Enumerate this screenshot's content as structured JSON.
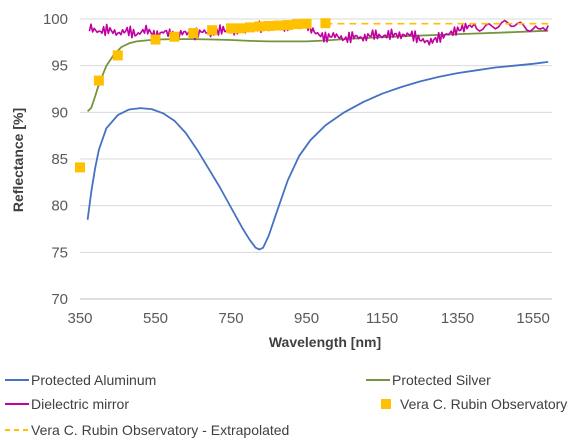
{
  "chart_data": {
    "type": "line",
    "title": "",
    "xlabel": "Wavelength [nm]",
    "ylabel": "Reflectance [%]",
    "xlim": [
      350,
      1600
    ],
    "ylim": [
      70,
      100
    ],
    "x_ticks": [
      350,
      550,
      750,
      950,
      1150,
      1350,
      1550
    ],
    "y_ticks": [
      70,
      75,
      80,
      85,
      90,
      95,
      100
    ],
    "grid": "horizontal",
    "legend_position": "bottom",
    "series": [
      {
        "name": "Protected Aluminum",
        "kind": "line",
        "color": "#4472C4",
        "points": [
          [
            370,
            78.5
          ],
          [
            380,
            81.5
          ],
          [
            390,
            84
          ],
          [
            400,
            86
          ],
          [
            420,
            88.3
          ],
          [
            450,
            89.7
          ],
          [
            480,
            90.3
          ],
          [
            510,
            90.45
          ],
          [
            540,
            90.35
          ],
          [
            570,
            89.9
          ],
          [
            600,
            89.1
          ],
          [
            630,
            87.8
          ],
          [
            660,
            86
          ],
          [
            690,
            84
          ],
          [
            720,
            82
          ],
          [
            750,
            79.8
          ],
          [
            780,
            77.6
          ],
          [
            800,
            76.3
          ],
          [
            815,
            75.5
          ],
          [
            825,
            75.3
          ],
          [
            835,
            75.5
          ],
          [
            850,
            76.8
          ],
          [
            870,
            79.2
          ],
          [
            900,
            82.7
          ],
          [
            930,
            85.3
          ],
          [
            960,
            87
          ],
          [
            1000,
            88.6
          ],
          [
            1050,
            90
          ],
          [
            1100,
            91.1
          ],
          [
            1150,
            92
          ],
          [
            1200,
            92.7
          ],
          [
            1250,
            93.3
          ],
          [
            1300,
            93.8
          ],
          [
            1350,
            94.2
          ],
          [
            1400,
            94.5
          ],
          [
            1450,
            94.8
          ],
          [
            1500,
            95
          ],
          [
            1550,
            95.2
          ],
          [
            1590,
            95.4
          ]
        ]
      },
      {
        "name": "Protected Silver",
        "kind": "line",
        "color": "#77933C",
        "points": [
          [
            370,
            90.1
          ],
          [
            380,
            90.5
          ],
          [
            390,
            91.7
          ],
          [
            400,
            93
          ],
          [
            420,
            95
          ],
          [
            440,
            96.2
          ],
          [
            460,
            97
          ],
          [
            480,
            97.4
          ],
          [
            500,
            97.6
          ],
          [
            550,
            97.8
          ],
          [
            600,
            97.85
          ],
          [
            650,
            97.85
          ],
          [
            700,
            97.8
          ],
          [
            750,
            97.75
          ],
          [
            800,
            97.65
          ],
          [
            850,
            97.6
          ],
          [
            900,
            97.6
          ],
          [
            950,
            97.6
          ],
          [
            1000,
            97.7
          ],
          [
            1050,
            97.85
          ],
          [
            1100,
            97.95
          ],
          [
            1150,
            98.05
          ],
          [
            1200,
            98.15
          ],
          [
            1300,
            98.3
          ],
          [
            1400,
            98.45
          ],
          [
            1500,
            98.6
          ],
          [
            1590,
            98.75
          ]
        ]
      },
      {
        "name": "Dielectric mirror",
        "kind": "line",
        "color": "#C000A0",
        "noisy": true,
        "points": [
          [
            375,
            99.1
          ],
          [
            400,
            98.6
          ],
          [
            425,
            98.9
          ],
          [
            450,
            98.4
          ],
          [
            475,
            98.8
          ],
          [
            500,
            98.3
          ],
          [
            525,
            98.9
          ],
          [
            550,
            98.2
          ],
          [
            575,
            98.7
          ],
          [
            600,
            98.1
          ],
          [
            625,
            98.6
          ],
          [
            650,
            98.3
          ],
          [
            675,
            98.7
          ],
          [
            700,
            98.4
          ],
          [
            725,
            98.9
          ],
          [
            750,
            98.6
          ],
          [
            775,
            99
          ],
          [
            800,
            98.8
          ],
          [
            825,
            99.2
          ],
          [
            850,
            99
          ],
          [
            875,
            99.4
          ],
          [
            900,
            99.2
          ],
          [
            925,
            99.5
          ],
          [
            950,
            99.3
          ],
          [
            975,
            98.5
          ],
          [
            1000,
            98
          ],
          [
            1025,
            98.3
          ],
          [
            1050,
            97.8
          ],
          [
            1075,
            98.2
          ],
          [
            1100,
            97.9
          ],
          [
            1125,
            98.4
          ],
          [
            1150,
            98.1
          ],
          [
            1175,
            98.4
          ],
          [
            1200,
            98.2
          ],
          [
            1225,
            98.4
          ],
          [
            1250,
            97.8
          ],
          [
            1275,
            97.5
          ],
          [
            1300,
            98
          ],
          [
            1325,
            98.4
          ],
          [
            1350,
            98.8
          ],
          [
            1375,
            99.2
          ],
          [
            1400,
            99.3
          ],
          [
            1450,
            99.2
          ],
          [
            1500,
            99.3
          ],
          [
            1550,
            99.1
          ],
          [
            1590,
            99.3
          ]
        ]
      },
      {
        "name": "Vera C. Rubin Observatory",
        "kind": "markers",
        "color": "#FFC000",
        "points": [
          [
            350,
            84.1
          ],
          [
            400,
            93.4
          ],
          [
            450,
            96.1
          ],
          [
            550,
            97.8
          ],
          [
            600,
            98.1
          ],
          [
            650,
            98.5
          ],
          [
            700,
            98.8
          ],
          [
            750,
            99
          ],
          [
            775,
            99
          ],
          [
            800,
            99.1
          ],
          [
            825,
            99.2
          ],
          [
            850,
            99.25
          ],
          [
            875,
            99.3
          ],
          [
            900,
            99.35
          ],
          [
            925,
            99.45
          ],
          [
            950,
            99.5
          ],
          [
            1000,
            99.55
          ]
        ]
      },
      {
        "name": "Vera C. Rubin Observatory - Extrapolated",
        "kind": "dashed",
        "color": "#FFC000",
        "points": [
          [
            1000,
            99.5
          ],
          [
            1590,
            99.5
          ]
        ]
      }
    ]
  },
  "legend": {
    "items": [
      {
        "label": "Protected Aluminum",
        "swatch": "line",
        "color": "#4472C4"
      },
      {
        "label": "Protected Silver",
        "swatch": "line",
        "color": "#77933C"
      },
      {
        "label": "Dielectric mirror",
        "swatch": "line",
        "color": "#C000A0"
      },
      {
        "label": "Vera C. Rubin Observatory",
        "swatch": "square",
        "color": "#FFC000"
      },
      {
        "label": "Vera C. Rubin Observatory - Extrapolated",
        "swatch": "dashed",
        "color": "#FFC000"
      }
    ]
  }
}
